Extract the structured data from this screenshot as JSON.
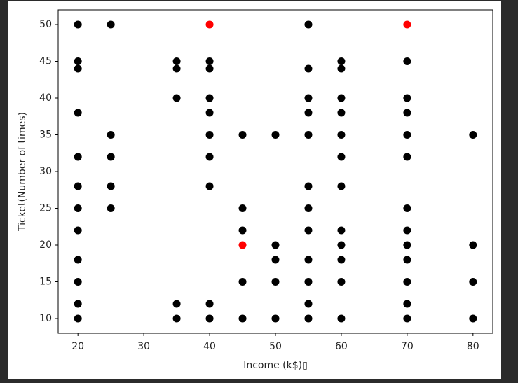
{
  "chart_data": {
    "type": "scatter",
    "xlabel": "Income (k$)▯",
    "ylabel": "Ticket(Number of times)",
    "xlim": [
      17,
      83
    ],
    "xticks": [
      20,
      30,
      40,
      50,
      60,
      70,
      80
    ],
    "ylim": [
      8,
      52
    ],
    "yticks": [
      10,
      15,
      20,
      25,
      30,
      35,
      40,
      45,
      50
    ],
    "series": [
      {
        "color": "#000000",
        "x": [
          20,
          20,
          20,
          20,
          20,
          20,
          20,
          20,
          20,
          20,
          20,
          20,
          25,
          25,
          25,
          25,
          25,
          35,
          35,
          35,
          35,
          35,
          40,
          40,
          40,
          40,
          40,
          40,
          40,
          40,
          40,
          45,
          45,
          45,
          45,
          45,
          50,
          50,
          50,
          50,
          50,
          55,
          55,
          55,
          55,
          55,
          55,
          55,
          55,
          55,
          55,
          55,
          55,
          60,
          60,
          60,
          60,
          60,
          60,
          60,
          60,
          60,
          60,
          60,
          60,
          70,
          70,
          70,
          70,
          70,
          70,
          70,
          70,
          70,
          70,
          70,
          70,
          80,
          80,
          80,
          80
        ],
        "y": [
          50,
          45,
          44,
          38,
          32,
          28,
          25,
          22,
          18,
          15,
          12,
          10,
          50,
          35,
          32,
          28,
          25,
          45,
          44,
          40,
          12,
          10,
          45,
          44,
          40,
          38,
          35,
          32,
          28,
          12,
          10,
          35,
          25,
          22,
          15,
          10,
          35,
          20,
          18,
          15,
          10,
          50,
          44,
          40,
          38,
          35,
          28,
          25,
          22,
          18,
          15,
          12,
          10,
          45,
          44,
          40,
          38,
          35,
          32,
          28,
          22,
          20,
          18,
          15,
          10,
          45,
          40,
          38,
          35,
          32,
          25,
          22,
          20,
          18,
          15,
          12,
          10,
          35,
          20,
          15,
          10
        ]
      },
      {
        "color": "#ff0000",
        "x": [
          40,
          70,
          45
        ],
        "y": [
          50,
          50,
          20
        ]
      }
    ]
  }
}
